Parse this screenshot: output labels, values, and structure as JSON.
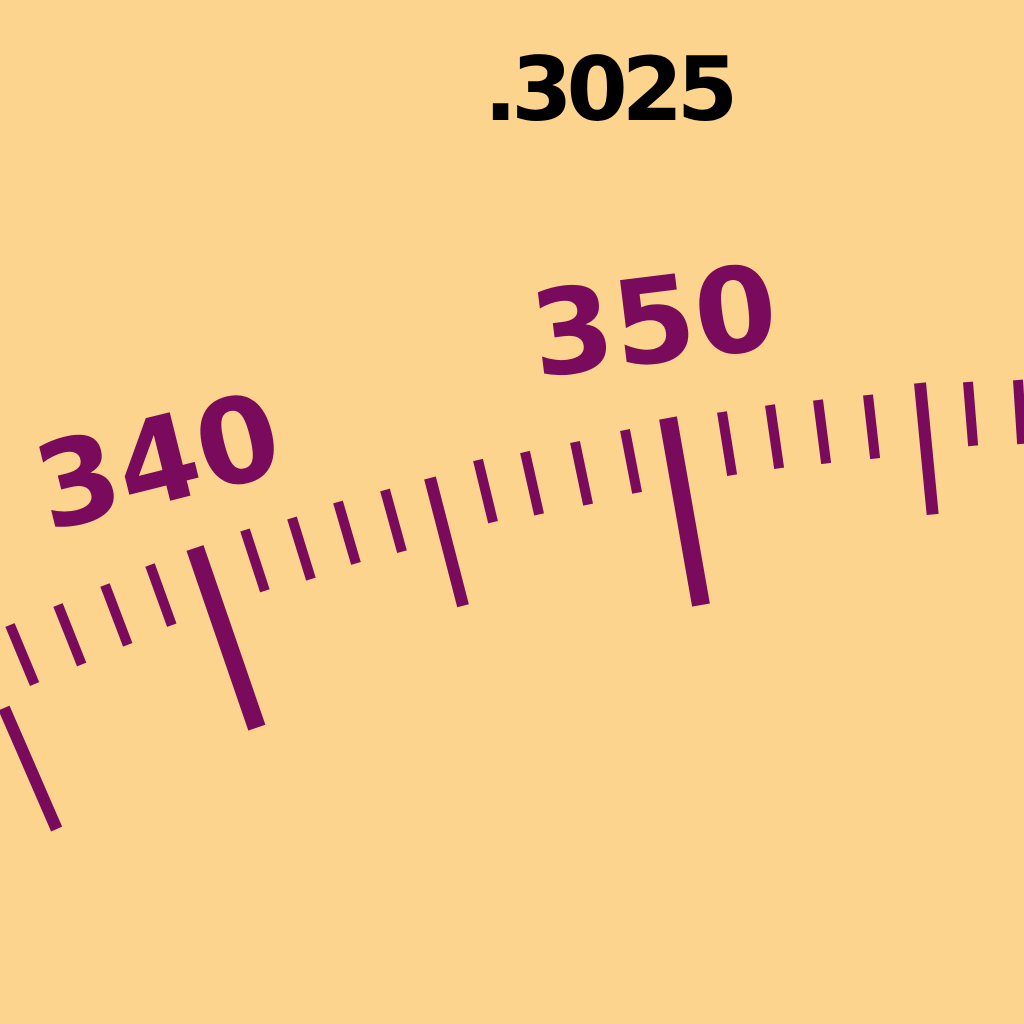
{
  "readout": ".3025",
  "scale": {
    "labels": [
      "340",
      "350"
    ]
  }
}
